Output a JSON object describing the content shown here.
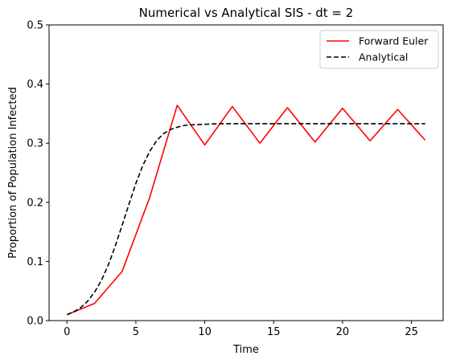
{
  "chart_data": {
    "type": "line",
    "title": "Numerical vs Analytical SIS - dt = 2",
    "xlabel": "Time",
    "ylabel": "Proportion of Population Infected",
    "xlim": [
      -1.3,
      27.3
    ],
    "ylim": [
      0,
      0.5
    ],
    "xticks": [
      0,
      5,
      10,
      15,
      20,
      25
    ],
    "xtick_labels": [
      "0",
      "5",
      "10",
      "15",
      "20",
      "25"
    ],
    "yticks": [
      0.0,
      0.1,
      0.2,
      0.3,
      0.4,
      0.5
    ],
    "ytick_labels": [
      "0.0",
      "0.1",
      "0.2",
      "0.3",
      "0.4",
      "0.5"
    ],
    "grid": false,
    "legend_position": "upper right",
    "series": [
      {
        "name": "Forward Euler",
        "color": "#ff0000",
        "style": "solid",
        "x": [
          0,
          2,
          4,
          6,
          8,
          10,
          12,
          14,
          16,
          18,
          20,
          22,
          24,
          26
        ],
        "y": [
          0.01,
          0.029,
          0.083,
          0.208,
          0.364,
          0.297,
          0.362,
          0.3,
          0.36,
          0.302,
          0.359,
          0.304,
          0.357,
          0.305
        ]
      },
      {
        "name": "Analytical",
        "color": "#000000",
        "style": "dashed",
        "x": [
          0,
          0.5,
          1,
          1.5,
          2,
          2.5,
          3,
          3.5,
          4,
          4.5,
          5,
          5.5,
          6,
          6.5,
          7,
          7.5,
          8,
          8.5,
          9,
          10,
          11,
          12,
          14,
          16,
          18,
          20,
          22,
          24,
          26
        ],
        "y": [
          0.01,
          0.015,
          0.022,
          0.033,
          0.048,
          0.068,
          0.094,
          0.126,
          0.161,
          0.197,
          0.232,
          0.262,
          0.286,
          0.304,
          0.316,
          0.323,
          0.327,
          0.33,
          0.331,
          0.332,
          0.333,
          0.333,
          0.333,
          0.333,
          0.333,
          0.333,
          0.333,
          0.333,
          0.333
        ]
      }
    ]
  }
}
